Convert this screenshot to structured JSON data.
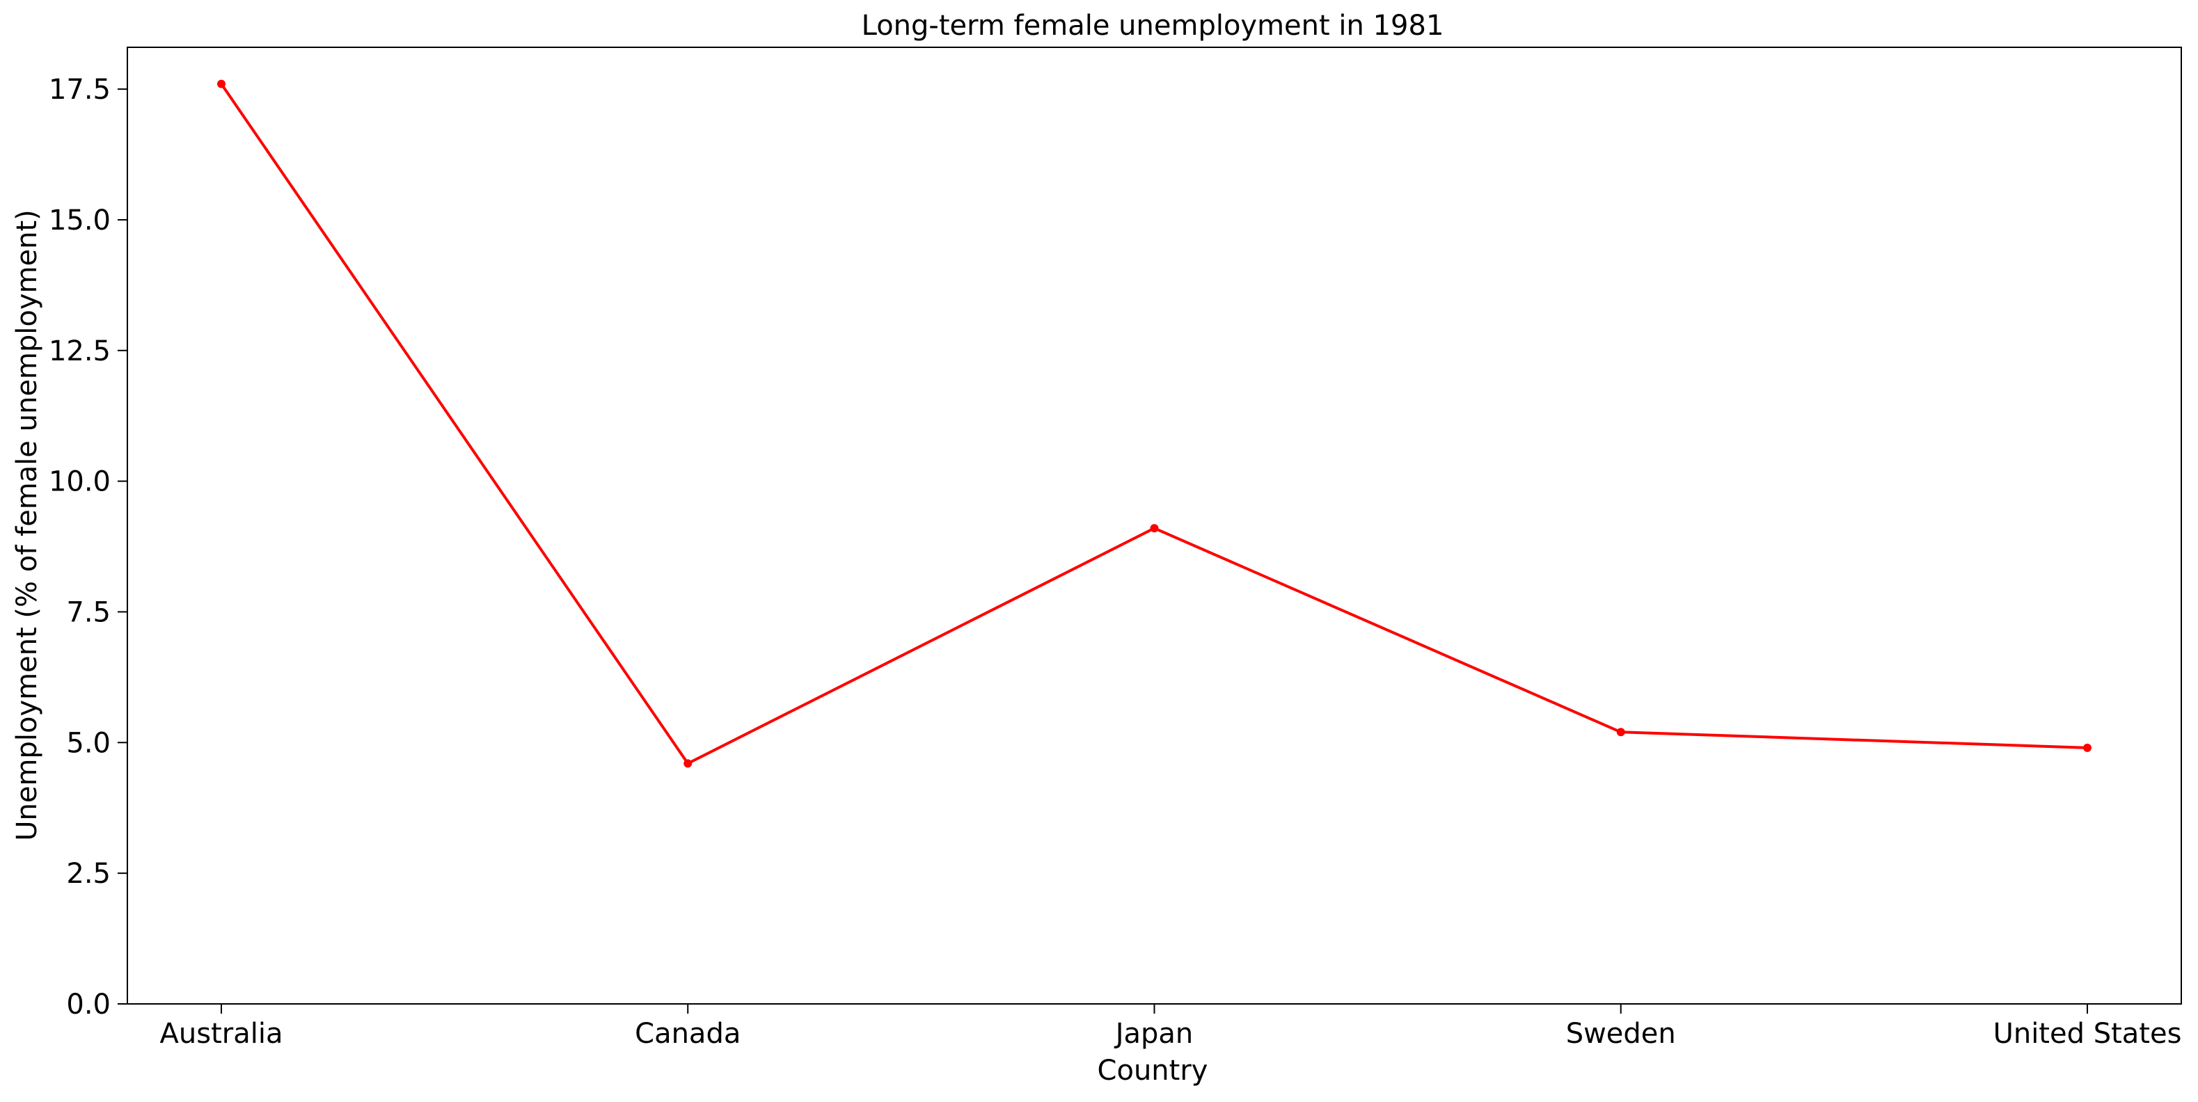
{
  "chart_data": {
    "type": "line",
    "title": "Long-term female unemployment in 1981",
    "xlabel": "Country",
    "ylabel": "Unemployment (% of female unemployment)",
    "categories": [
      "Australia",
      "Canada",
      "Japan",
      "Sweden",
      "United States"
    ],
    "series": [
      {
        "values": [
          17.6,
          4.6,
          9.1,
          5.2,
          4.9
        ],
        "color": "#ff0000"
      }
    ],
    "ylim": [
      0,
      18.3
    ],
    "yticks": [
      "0.0",
      "2.5",
      "5.0",
      "7.5",
      "10.0",
      "12.5",
      "15.0",
      "17.5"
    ],
    "grid": false,
    "legend": false,
    "marker": "circle"
  }
}
